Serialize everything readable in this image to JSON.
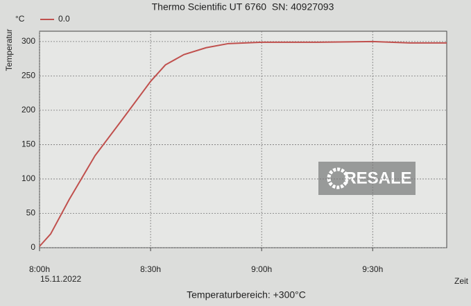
{
  "chart_data": {
    "type": "line",
    "title": "Thermo Scientific UT 6760  SN: 40927093",
    "y_label": "Temperatur",
    "y_unit": "°C",
    "x_label": "Zeit",
    "date": "15.11.2022",
    "footer": "Temperaturbereich: +300°C",
    "watermark": "RESALE",
    "x": [
      0,
      3,
      8,
      15,
      22,
      30,
      34,
      39,
      45,
      51,
      60,
      75,
      90,
      100,
      110
    ],
    "series": [
      {
        "name": "0.0",
        "color": "#c0504d",
        "values": [
          2,
          20,
          70,
          134,
          184,
          242,
          266,
          281,
          291,
          297,
          299,
          299,
          300,
          298,
          298
        ]
      }
    ],
    "xlim": [
      0,
      110
    ],
    "ylim": [
      0,
      315
    ],
    "xticks": [
      {
        "value": 0,
        "label": "8:00h"
      },
      {
        "value": 30,
        "label": "8:30h"
      },
      {
        "value": 60,
        "label": "9:00h"
      },
      {
        "value": 90,
        "label": "9:30h"
      }
    ],
    "yticks": [
      0,
      50,
      100,
      150,
      200,
      250,
      300
    ],
    "grid": true
  }
}
